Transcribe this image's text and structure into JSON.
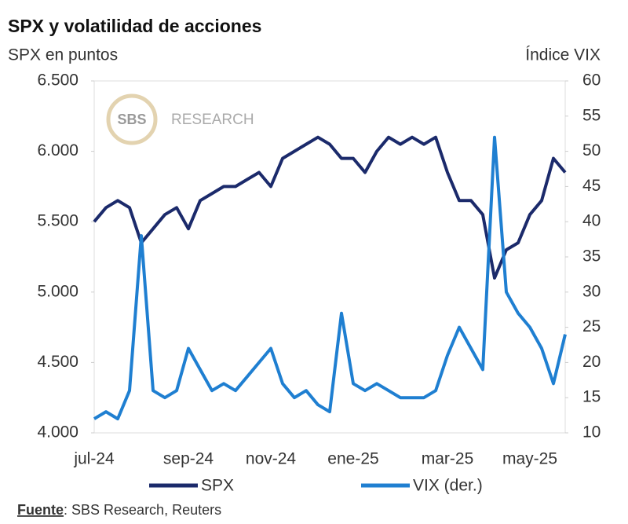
{
  "chart_data": {
    "type": "line",
    "title": "SPX y volatilidad de acciones",
    "y_label": "SPX en puntos",
    "y2_label": "Índice VIX",
    "watermark": {
      "logo": "SBS",
      "text": "RESEARCH"
    },
    "source": {
      "label": "Fuente",
      "text": ": SBS Research, Reuters"
    },
    "categories": [
      "jul-24",
      null,
      null,
      null,
      null,
      null,
      null,
      null,
      "sep-24",
      null,
      null,
      null,
      null,
      null,
      null,
      "nov-24",
      null,
      null,
      null,
      null,
      null,
      null,
      "ene-25",
      null,
      null,
      null,
      null,
      null,
      null,
      null,
      "mar-25",
      null,
      null,
      null,
      null,
      null,
      null,
      "may-25",
      null,
      null,
      null
    ],
    "series": [
      {
        "name": "SPX",
        "color": "#1b2a6b",
        "axis": "y",
        "values": [
          5500,
          5600,
          5650,
          5600,
          5350,
          5450,
          5550,
          5600,
          5450,
          5650,
          5700,
          5750,
          5750,
          5800,
          5850,
          5750,
          5950,
          6000,
          6050,
          6100,
          6050,
          5950,
          5950,
          5850,
          6000,
          6100,
          6050,
          6100,
          6050,
          6100,
          5850,
          5650,
          5650,
          5550,
          5100,
          5300,
          5350,
          5550,
          5650,
          5950,
          5850
        ]
      },
      {
        "name": "VIX (der.)",
        "color": "#1f7fd1",
        "axis": "y2",
        "values": [
          12,
          13,
          12,
          16,
          38,
          16,
          15,
          16,
          22,
          19,
          16,
          17,
          16,
          18,
          20,
          22,
          17,
          15,
          16,
          14,
          13,
          27,
          17,
          16,
          17,
          16,
          15,
          15,
          15,
          16,
          21,
          25,
          22,
          19,
          52,
          30,
          27,
          25,
          22,
          17,
          24
        ]
      }
    ],
    "ylim": [
      4000,
      6500
    ],
    "yticks": [
      {
        "value": 4000,
        "label": "4.000"
      },
      {
        "value": 4500,
        "label": "4.500"
      },
      {
        "value": 5000,
        "label": "5.000"
      },
      {
        "value": 5500,
        "label": "5.500"
      },
      {
        "value": 6000,
        "label": "6.000"
      },
      {
        "value": 6500,
        "label": "6.500"
      }
    ],
    "y2lim": [
      10,
      60
    ],
    "y2ticks": [
      10,
      15,
      20,
      25,
      30,
      35,
      40,
      45,
      50,
      55,
      60
    ],
    "grid": false,
    "legend": "bottom"
  }
}
